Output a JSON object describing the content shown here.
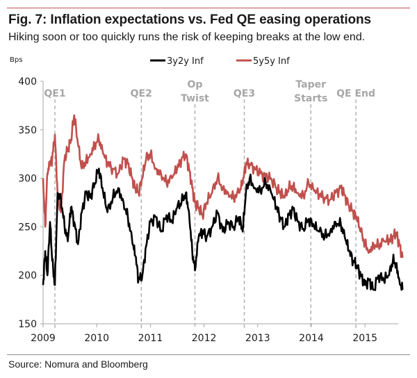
{
  "header": {
    "title": "Fig. 7: Inflation expectations vs. Fed QE easing operations",
    "subtitle": "Hiking soon or too quickly runs the risk of keeping breaks at the low end."
  },
  "footer": {
    "source": "Source: Nomura and Bloomberg"
  },
  "colors": {
    "accent_rule": "#c0504d",
    "series_3y2y": "#000000",
    "series_5y5y": "#c0504d",
    "annotation": "#a6a6a6",
    "axis": "#a6a6a6"
  },
  "chart_data": {
    "type": "line",
    "title": "Fig. 7: Inflation expectations vs. Fed QE easing operations",
    "subtitle": "Hiking soon or too quickly runs the risk of keeping breaks at the low end.",
    "ylabel": "Bps",
    "xlabel": "",
    "ylim": [
      150,
      400
    ],
    "yticks": [
      150,
      200,
      250,
      300,
      350,
      400
    ],
    "xlim": [
      2009.0,
      2015.7
    ],
    "xticks": [
      2009,
      2010,
      2011,
      2012,
      2013,
      2014,
      2015
    ],
    "xtick_labels": [
      "2009",
      "2010",
      "2011",
      "2012",
      "2013",
      "2014",
      "2015"
    ],
    "grid": false,
    "legend": {
      "placement": "top-center",
      "entries": [
        "3y2y Inf",
        "5y5y Inf"
      ]
    },
    "annotations": [
      {
        "label_lines": [
          "QE1"
        ],
        "x": 2009.22
      },
      {
        "label_lines": [
          "QE2"
        ],
        "x": 2010.83
      },
      {
        "label_lines": [
          "Op",
          "Twist"
        ],
        "x": 2011.83
      },
      {
        "label_lines": [
          "QE3"
        ],
        "x": 2012.75
      },
      {
        "label_lines": [
          "Taper",
          "Starts"
        ],
        "x": 2013.99
      },
      {
        "label_lines": [
          "QE End"
        ],
        "x": 2014.83
      }
    ],
    "x": [
      2009.0,
      2009.04,
      2009.08,
      2009.13,
      2009.17,
      2009.22,
      2009.27,
      2009.33,
      2009.4,
      2009.46,
      2009.52,
      2009.58,
      2009.65,
      2009.72,
      2009.8,
      2009.88,
      2009.96,
      2010.04,
      2010.12,
      2010.2,
      2010.3,
      2010.4,
      2010.5,
      2010.58,
      2010.66,
      2010.72,
      2010.78,
      2010.85,
      2010.92,
      2011.0,
      2011.1,
      2011.2,
      2011.3,
      2011.4,
      2011.5,
      2011.58,
      2011.66,
      2011.72,
      2011.78,
      2011.83,
      2011.9,
      2011.97,
      2012.05,
      2012.15,
      2012.25,
      2012.35,
      2012.45,
      2012.55,
      2012.65,
      2012.72,
      2012.78,
      2012.85,
      2012.95,
      2013.05,
      2013.15,
      2013.25,
      2013.35,
      2013.42,
      2013.5,
      2013.58,
      2013.66,
      2013.75,
      2013.85,
      2013.95,
      2014.05,
      2014.15,
      2014.25,
      2014.35,
      2014.45,
      2014.55,
      2014.62,
      2014.7,
      2014.78,
      2014.85,
      2014.92,
      2015.0,
      2015.08,
      2015.16,
      2015.25,
      2015.35,
      2015.45,
      2015.52,
      2015.58,
      2015.64,
      2015.7
    ],
    "series": [
      {
        "name": "3y2y Inf",
        "values": [
          190,
          225,
          200,
          255,
          215,
          190,
          285,
          280,
          250,
          235,
          270,
          255,
          232,
          265,
          285,
          280,
          295,
          310,
          285,
          265,
          280,
          290,
          275,
          260,
          235,
          220,
          195,
          200,
          230,
          255,
          260,
          245,
          262,
          255,
          270,
          275,
          285,
          265,
          225,
          205,
          240,
          245,
          240,
          250,
          265,
          245,
          255,
          250,
          260,
          245,
          285,
          300,
          290,
          288,
          295,
          285,
          270,
          260,
          250,
          262,
          268,
          255,
          248,
          258,
          250,
          245,
          240,
          245,
          255,
          252,
          240,
          225,
          215,
          210,
          200,
          190,
          195,
          185,
          200,
          195,
          200,
          215,
          212,
          195,
          185
        ]
      },
      {
        "name": "5y5y Inf",
        "values": [
          300,
          250,
          305,
          315,
          320,
          345,
          285,
          265,
          320,
          330,
          340,
          365,
          335,
          310,
          318,
          325,
          335,
          340,
          325,
          315,
          310,
          305,
          320,
          315,
          300,
          290,
          285,
          300,
          320,
          325,
          310,
          305,
          295,
          300,
          310,
          320,
          325,
          310,
          290,
          275,
          270,
          262,
          275,
          285,
          300,
          290,
          285,
          280,
          285,
          295,
          315,
          315,
          310,
          305,
          302,
          300,
          290,
          285,
          280,
          290,
          292,
          285,
          282,
          295,
          287,
          283,
          280,
          278,
          285,
          290,
          283,
          272,
          265,
          258,
          245,
          232,
          225,
          232,
          230,
          235,
          235,
          240,
          244,
          232,
          218
        ]
      }
    ]
  }
}
